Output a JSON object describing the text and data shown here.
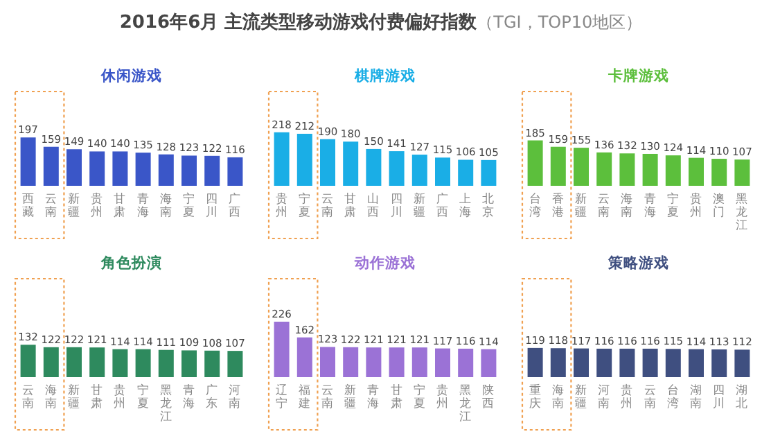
{
  "chart_data": [
    {
      "type": "other",
      "title": "2016年6月 主流类型移动游戏付费偏好指数",
      "subtitle": "（TGI，TOP10地区）"
    },
    {
      "type": "bar",
      "title": "休闲游戏",
      "categories": [
        "西藏",
        "云南",
        "新疆",
        "贵州",
        "甘肃",
        "青海",
        "海南",
        "宁夏",
        "四川",
        "广西"
      ],
      "values": [
        197,
        159,
        149,
        140,
        140,
        135,
        128,
        123,
        122,
        116
      ],
      "color": "#3a56c8",
      "data_labels": true
    },
    {
      "type": "bar",
      "title": "棋牌游戏",
      "categories": [
        "贵州",
        "宁夏",
        "云南",
        "甘肃",
        "山西",
        "四川",
        "新疆",
        "广西",
        "上海",
        "北京"
      ],
      "values": [
        218,
        212,
        190,
        180,
        150,
        141,
        127,
        115,
        106,
        105
      ],
      "color": "#1aaee6",
      "data_labels": true
    },
    {
      "type": "bar",
      "title": "卡牌游戏",
      "categories": [
        "台湾",
        "香港",
        "新疆",
        "云南",
        "海南",
        "青海",
        "宁夏",
        "贵州",
        "澳门",
        "黑龙江"
      ],
      "values": [
        185,
        159,
        155,
        136,
        132,
        130,
        124,
        114,
        110,
        107
      ],
      "color": "#5cbf3c",
      "data_labels": true
    },
    {
      "type": "bar",
      "title": "角色扮演",
      "categories": [
        "云南",
        "海南",
        "新疆",
        "甘肃",
        "贵州",
        "宁夏",
        "黑龙江",
        "青海",
        "广东",
        "河南"
      ],
      "values": [
        132,
        122,
        122,
        121,
        114,
        114,
        111,
        109,
        108,
        107
      ],
      "color": "#2e8a5e",
      "data_labels": true
    },
    {
      "type": "bar",
      "title": "动作游戏",
      "categories": [
        "辽宁",
        "福建",
        "云南",
        "新疆",
        "青海",
        "甘肃",
        "宁夏",
        "贵州",
        "黑龙江",
        "陕西"
      ],
      "values": [
        226,
        162,
        123,
        122,
        121,
        121,
        121,
        117,
        116,
        114
      ],
      "color": "#9b72d6",
      "data_labels": true
    },
    {
      "type": "bar",
      "title": "策略游戏",
      "categories": [
        "重庆",
        "海南",
        "新疆",
        "河南",
        "贵州",
        "云南",
        "台湾",
        "湖南",
        "四川",
        "湖北"
      ],
      "values": [
        119,
        118,
        117,
        116,
        116,
        116,
        115,
        114,
        113,
        112
      ],
      "color": "#3f4f80",
      "data_labels": true
    }
  ]
}
